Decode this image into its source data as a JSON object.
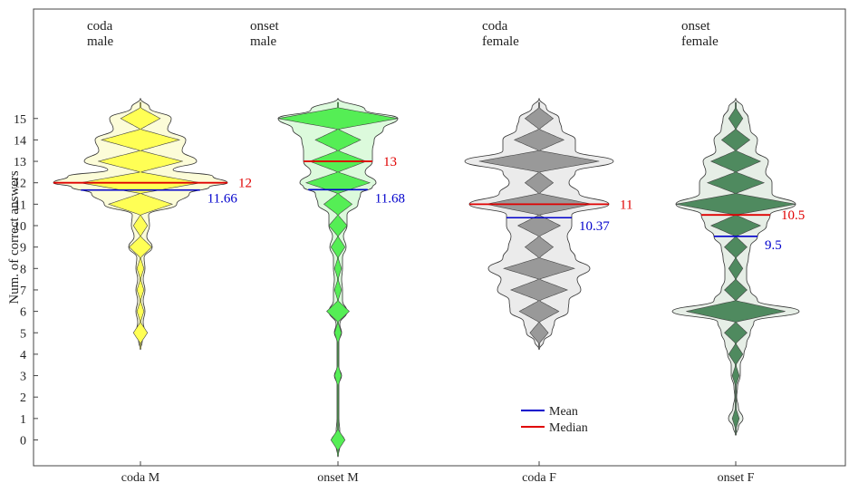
{
  "chart_data": {
    "type": "violin",
    "ylabel": "Num. of correct answers",
    "ylim": [
      -0.8,
      15.9
    ],
    "yticks": [
      "0",
      "1",
      "2",
      "3",
      "4",
      "5",
      "6",
      "7",
      "8",
      "9",
      "10",
      "11",
      "12",
      "13",
      "14",
      "15"
    ],
    "categories": [
      "coda M",
      "onset M",
      "coda F",
      "onset F"
    ],
    "legend": {
      "position": "bottom-center",
      "entries": [
        {
          "label": "Mean",
          "color": "#0000cc"
        },
        {
          "label": "Median",
          "color": "#e00000"
        }
      ]
    },
    "groups": [
      {
        "category": "coda M",
        "annotation": [
          "coda",
          "male"
        ],
        "colors": {
          "fill": "#ffff55",
          "outer": "#fcfcd8"
        },
        "mean": 11.66,
        "mean_label": "11.66",
        "median": 12,
        "median_label": "12",
        "support": [
          4.2,
          15.95
        ],
        "outer_profile": [
          [
            4.2,
            0
          ],
          [
            4.6,
            2
          ],
          [
            5,
            5
          ],
          [
            5.5,
            3
          ],
          [
            6,
            5
          ],
          [
            6.5,
            3
          ],
          [
            7,
            5
          ],
          [
            7.5,
            3
          ],
          [
            8,
            5
          ],
          [
            8.5,
            4
          ],
          [
            9,
            13
          ],
          [
            9.5,
            7
          ],
          [
            10,
            10
          ],
          [
            10.5,
            9
          ],
          [
            11,
            40
          ],
          [
            11.5,
            54
          ],
          [
            11.8,
            76
          ],
          [
            12,
            96
          ],
          [
            12.3,
            80
          ],
          [
            12.6,
            36
          ],
          [
            13,
            62
          ],
          [
            13.5,
            46
          ],
          [
            14,
            50
          ],
          [
            14.5,
            30
          ],
          [
            15,
            34
          ],
          [
            15.5,
            10
          ],
          [
            15.95,
            0
          ]
        ],
        "inner_counts": [
          [
            5,
            1.0
          ],
          [
            6,
            0.5
          ],
          [
            7,
            0.5
          ],
          [
            8,
            0.5
          ],
          [
            9,
            1.6
          ],
          [
            10,
            1.0
          ],
          [
            11,
            4.5
          ],
          [
            12,
            8.5
          ],
          [
            13,
            6.0
          ],
          [
            14,
            5.5
          ],
          [
            15,
            2.8
          ]
        ]
      },
      {
        "category": "onset M",
        "annotation": [
          "onset",
          "male"
        ],
        "colors": {
          "fill": "#55ee55",
          "outer": "#dcfadc"
        },
        "mean": 11.68,
        "mean_label": "11.68",
        "median": 13,
        "median_label": "13",
        "support": [
          -0.8,
          15.95
        ],
        "outer_profile": [
          [
            -0.8,
            0
          ],
          [
            -0.3,
            2
          ],
          [
            0,
            7
          ],
          [
            0.4,
            2
          ],
          [
            1,
            1
          ],
          [
            2,
            1
          ],
          [
            2.6,
            1
          ],
          [
            3,
            4
          ],
          [
            3.4,
            1
          ],
          [
            4,
            1
          ],
          [
            4.6,
            1
          ],
          [
            5,
            4
          ],
          [
            5.4,
            2
          ],
          [
            6,
            10
          ],
          [
            6.5,
            5
          ],
          [
            7,
            5
          ],
          [
            7.5,
            4
          ],
          [
            8,
            5
          ],
          [
            8.5,
            5
          ],
          [
            9,
            9
          ],
          [
            9.5,
            6
          ],
          [
            10,
            10
          ],
          [
            10.5,
            10
          ],
          [
            11,
            22
          ],
          [
            11.5,
            25
          ],
          [
            11.8,
            38
          ],
          [
            12,
            42
          ],
          [
            12.5,
            30
          ],
          [
            13,
            38
          ],
          [
            13.5,
            38
          ],
          [
            14,
            40
          ],
          [
            14.5,
            50
          ],
          [
            15,
            66
          ],
          [
            15.4,
            30
          ],
          [
            15.95,
            0
          ]
        ],
        "inner_counts": [
          [
            0,
            1.0
          ],
          [
            3,
            0.5
          ],
          [
            5,
            0.5
          ],
          [
            6,
            1.6
          ],
          [
            7,
            0.5
          ],
          [
            8,
            0.5
          ],
          [
            9,
            1.0
          ],
          [
            10,
            1.3
          ],
          [
            11,
            2.0
          ],
          [
            12,
            4.5
          ],
          [
            13,
            4.0
          ],
          [
            14,
            3.2
          ],
          [
            15,
            8.5
          ]
        ]
      },
      {
        "category": "coda F",
        "annotation": [
          "coda",
          "female"
        ],
        "colors": {
          "fill": "#999999",
          "outer": "#ebebeb"
        },
        "mean": 10.37,
        "mean_label": "10.37",
        "median": 11,
        "median_label": "11",
        "support": [
          4.2,
          15.95
        ],
        "outer_profile": [
          [
            4.2,
            0
          ],
          [
            4.6,
            5
          ],
          [
            5,
            14
          ],
          [
            5.5,
            17
          ],
          [
            6,
            32
          ],
          [
            6.5,
            33
          ],
          [
            7,
            46
          ],
          [
            7.5,
            42
          ],
          [
            8,
            56
          ],
          [
            8.5,
            40
          ],
          [
            9,
            34
          ],
          [
            9.5,
            31
          ],
          [
            10,
            36
          ],
          [
            10.5,
            36
          ],
          [
            11,
            77
          ],
          [
            11.5,
            44
          ],
          [
            12,
            33
          ],
          [
            12.5,
            40
          ],
          [
            13,
            82
          ],
          [
            13.5,
            40
          ],
          [
            14,
            40
          ],
          [
            14.5,
            25
          ],
          [
            15,
            22
          ],
          [
            15.5,
            8
          ],
          [
            15.95,
            0
          ]
        ],
        "inner_counts": [
          [
            5,
            1.3
          ],
          [
            6,
            2.8
          ],
          [
            7,
            4.0
          ],
          [
            8,
            5.0
          ],
          [
            9,
            2.0
          ],
          [
            10,
            3.0
          ],
          [
            11,
            7.5
          ],
          [
            12,
            2.0
          ],
          [
            13,
            8.5
          ],
          [
            14,
            3.5
          ],
          [
            15,
            2.0
          ]
        ]
      },
      {
        "category": "onset F",
        "annotation": [
          "onset",
          "female"
        ],
        "colors": {
          "fill": "#4f8a5f",
          "outer": "#e6eee6"
        },
        "mean": 9.5,
        "mean_label": "9.5",
        "median": 10.5,
        "median_label": "10.5",
        "support": [
          0.2,
          15.95
        ],
        "outer_profile": [
          [
            0.2,
            0
          ],
          [
            0.6,
            3
          ],
          [
            1,
            8
          ],
          [
            1.5,
            3
          ],
          [
            2,
            1
          ],
          [
            2.5,
            2
          ],
          [
            3,
            5
          ],
          [
            3.5,
            5
          ],
          [
            4,
            9
          ],
          [
            4.5,
            12
          ],
          [
            5,
            16
          ],
          [
            5.5,
            20
          ],
          [
            6,
            70
          ],
          [
            6.5,
            24
          ],
          [
            7,
            16
          ],
          [
            7.5,
            12
          ],
          [
            8,
            12
          ],
          [
            8.5,
            14
          ],
          [
            9,
            16
          ],
          [
            9.5,
            24
          ],
          [
            10,
            34
          ],
          [
            10.5,
            38
          ],
          [
            11,
            66
          ],
          [
            11.5,
            40
          ],
          [
            12,
            40
          ],
          [
            12.5,
            33
          ],
          [
            13,
            36
          ],
          [
            13.5,
            22
          ],
          [
            14,
            24
          ],
          [
            14.5,
            16
          ],
          [
            15,
            14
          ],
          [
            15.5,
            8
          ],
          [
            15.95,
            0
          ]
        ],
        "inner_counts": [
          [
            1,
            0.5
          ],
          [
            3,
            0.5
          ],
          [
            4,
            1.0
          ],
          [
            5,
            1.6
          ],
          [
            6,
            7.0
          ],
          [
            7,
            1.6
          ],
          [
            8,
            1.0
          ],
          [
            9,
            1.6
          ],
          [
            10,
            3.5
          ],
          [
            11,
            8.5
          ],
          [
            12,
            4.0
          ],
          [
            13,
            3.5
          ],
          [
            14,
            2.0
          ],
          [
            15,
            1.0
          ]
        ]
      }
    ]
  }
}
